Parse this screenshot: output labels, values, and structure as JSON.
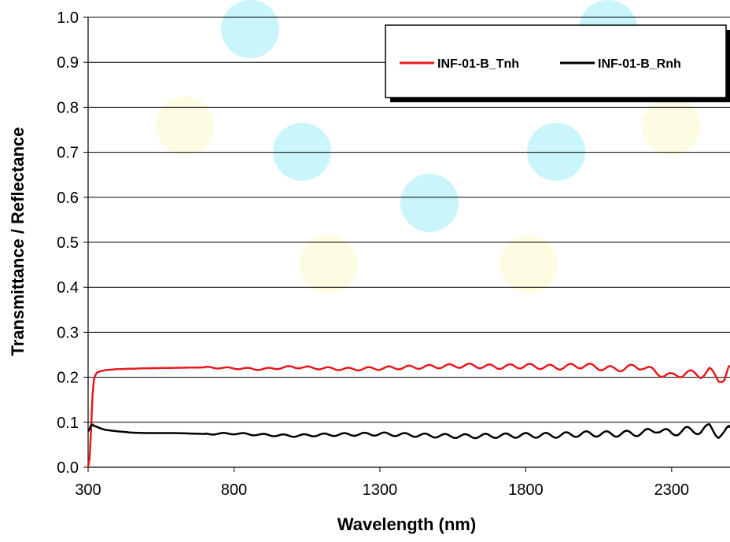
{
  "chart_data": {
    "type": "line",
    "xlabel": "Wavelength  (nm)",
    "ylabel": "Transmittance / Reflectance",
    "xlim": [
      300,
      2500
    ],
    "ylim": [
      0,
      1.0
    ],
    "xticks": [
      300,
      800,
      1300,
      1800,
      2300
    ],
    "yticks": [
      0.0,
      0.1,
      0.2,
      0.3,
      0.4,
      0.5,
      0.6,
      0.7,
      0.8,
      0.9,
      1.0
    ],
    "ytick_labels": [
      "0.0",
      "0.1",
      "0.2",
      "0.3",
      "0.4",
      "0.5",
      "0.6",
      "0.7",
      "0.8",
      "0.9",
      "1.0"
    ],
    "grid": "horizontal",
    "legend_position": "top-right",
    "series": [
      {
        "name": "INF-01-B_Tnh",
        "color": "#e8191e",
        "x": [
          300,
          305,
          310,
          315,
          320,
          325,
          330,
          340,
          360,
          400,
          500,
          600,
          700,
          800,
          900,
          1000,
          1100,
          1200,
          1300,
          1400,
          1500,
          1600,
          1700,
          1800,
          1900,
          2000,
          2100,
          2200,
          2250,
          2300,
          2350,
          2400,
          2430,
          2460,
          2480,
          2500
        ],
        "y": [
          0.0,
          0.02,
          0.08,
          0.16,
          0.195,
          0.205,
          0.21,
          0.213,
          0.216,
          0.218,
          0.22,
          0.221,
          0.222,
          0.22,
          0.218,
          0.223,
          0.22,
          0.218,
          0.22,
          0.222,
          0.224,
          0.226,
          0.223,
          0.225,
          0.222,
          0.226,
          0.218,
          0.224,
          0.21,
          0.202,
          0.21,
          0.205,
          0.215,
          0.195,
          0.198,
          0.225
        ]
      },
      {
        "name": "INF-01-B_Rnh",
        "color": "#000000",
        "x": [
          300,
          305,
          310,
          315,
          320,
          330,
          340,
          360,
          400,
          450,
          500,
          600,
          700,
          800,
          900,
          1000,
          1100,
          1200,
          1300,
          1400,
          1500,
          1600,
          1700,
          1800,
          1900,
          2000,
          2100,
          2200,
          2250,
          2300,
          2350,
          2400,
          2430,
          2460,
          2480,
          2500
        ],
        "y": [
          0.08,
          0.085,
          0.093,
          0.095,
          0.092,
          0.09,
          0.087,
          0.083,
          0.08,
          0.077,
          0.076,
          0.076,
          0.074,
          0.075,
          0.072,
          0.07,
          0.072,
          0.073,
          0.074,
          0.072,
          0.07,
          0.069,
          0.07,
          0.071,
          0.071,
          0.074,
          0.074,
          0.076,
          0.084,
          0.075,
          0.083,
          0.08,
          0.09,
          0.072,
          0.075,
          0.088
        ]
      }
    ]
  }
}
